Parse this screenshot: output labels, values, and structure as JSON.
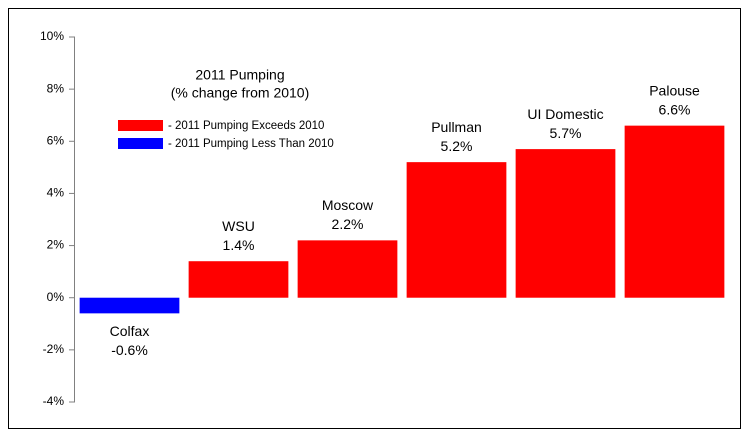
{
  "chart_data": {
    "type": "bar",
    "title": "2011 Pumping",
    "subtitle": "(% change from 2010)",
    "categories": [
      "Colfax",
      "WSU",
      "Moscow",
      "Pullman",
      "UI Domestic",
      "Palouse"
    ],
    "values": [
      -0.6,
      1.4,
      2.2,
      5.2,
      5.7,
      6.6
    ],
    "value_labels": [
      "-0.6%",
      "1.4%",
      "2.2%",
      "5.2%",
      "5.7%",
      "6.6%"
    ],
    "colors": [
      "#0000ff",
      "#ff0000",
      "#ff0000",
      "#ff0000",
      "#ff0000",
      "#ff0000"
    ],
    "legend": [
      {
        "name": "- 2011 Pumping Exceeds 2010",
        "color": "#ff0000"
      },
      {
        "name": "- 2011 Pumping Less Than 2010",
        "color": "#0000ff"
      }
    ],
    "ylim": [
      -4,
      10
    ],
    "yticks": [
      {
        "value": -4,
        "label": "-4%"
      },
      {
        "value": -2,
        "label": "-2%"
      },
      {
        "value": 0,
        "label": "0%"
      },
      {
        "value": 2,
        "label": "2%"
      },
      {
        "value": 4,
        "label": "4%"
      },
      {
        "value": 6,
        "label": "6%"
      },
      {
        "value": 8,
        "label": "8%"
      },
      {
        "value": 10,
        "label": "10%"
      }
    ]
  }
}
